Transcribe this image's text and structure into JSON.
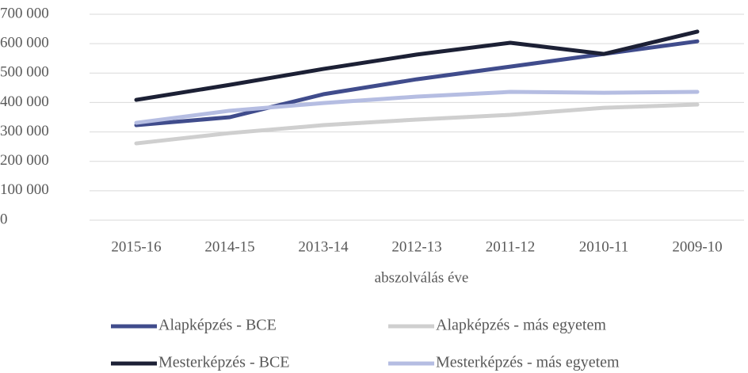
{
  "chart_data": {
    "type": "line",
    "categories": [
      "2015-16",
      "2014-15",
      "2013-14",
      "2012-13",
      "2011-12",
      "2010-11",
      "2009-10"
    ],
    "x_label": "abszolválás éve",
    "series": [
      {
        "name": "Alapképzés - BCE",
        "color": "#404c8c",
        "values": [
          323000,
          350000,
          428000,
          479000,
          522000,
          565000,
          608000
        ]
      },
      {
        "name": "Alapképzés - más egyetem",
        "color": "#cfcfcf",
        "values": [
          261000,
          296000,
          323000,
          342000,
          358000,
          382000,
          393000
        ]
      },
      {
        "name": "Mesterképzés - BCE",
        "color": "#1c2035",
        "values": [
          409000,
          460000,
          514000,
          563000,
          603000,
          565000,
          641000
        ]
      },
      {
        "name": "Mesterképzés - más egyetem",
        "color": "#b5bde2",
        "values": [
          331000,
          372000,
          398000,
          420000,
          436000,
          433000,
          436000
        ]
      }
    ],
    "ylim": [
      0,
      700000
    ],
    "yticks": [
      0,
      {
        "value": 100000,
        "label": "100 000"
      },
      {
        "value": 200000,
        "label": "200 000"
      },
      {
        "value": 300000,
        "label": "300 000"
      },
      {
        "value": 400000,
        "label": "400 000"
      },
      {
        "value": 500000,
        "label": "500 000"
      },
      {
        "value": 600000,
        "label": "600 000"
      },
      {
        "value": 700000,
        "label": "700 000"
      }
    ],
    "grid": true,
    "legend": "bottom"
  }
}
